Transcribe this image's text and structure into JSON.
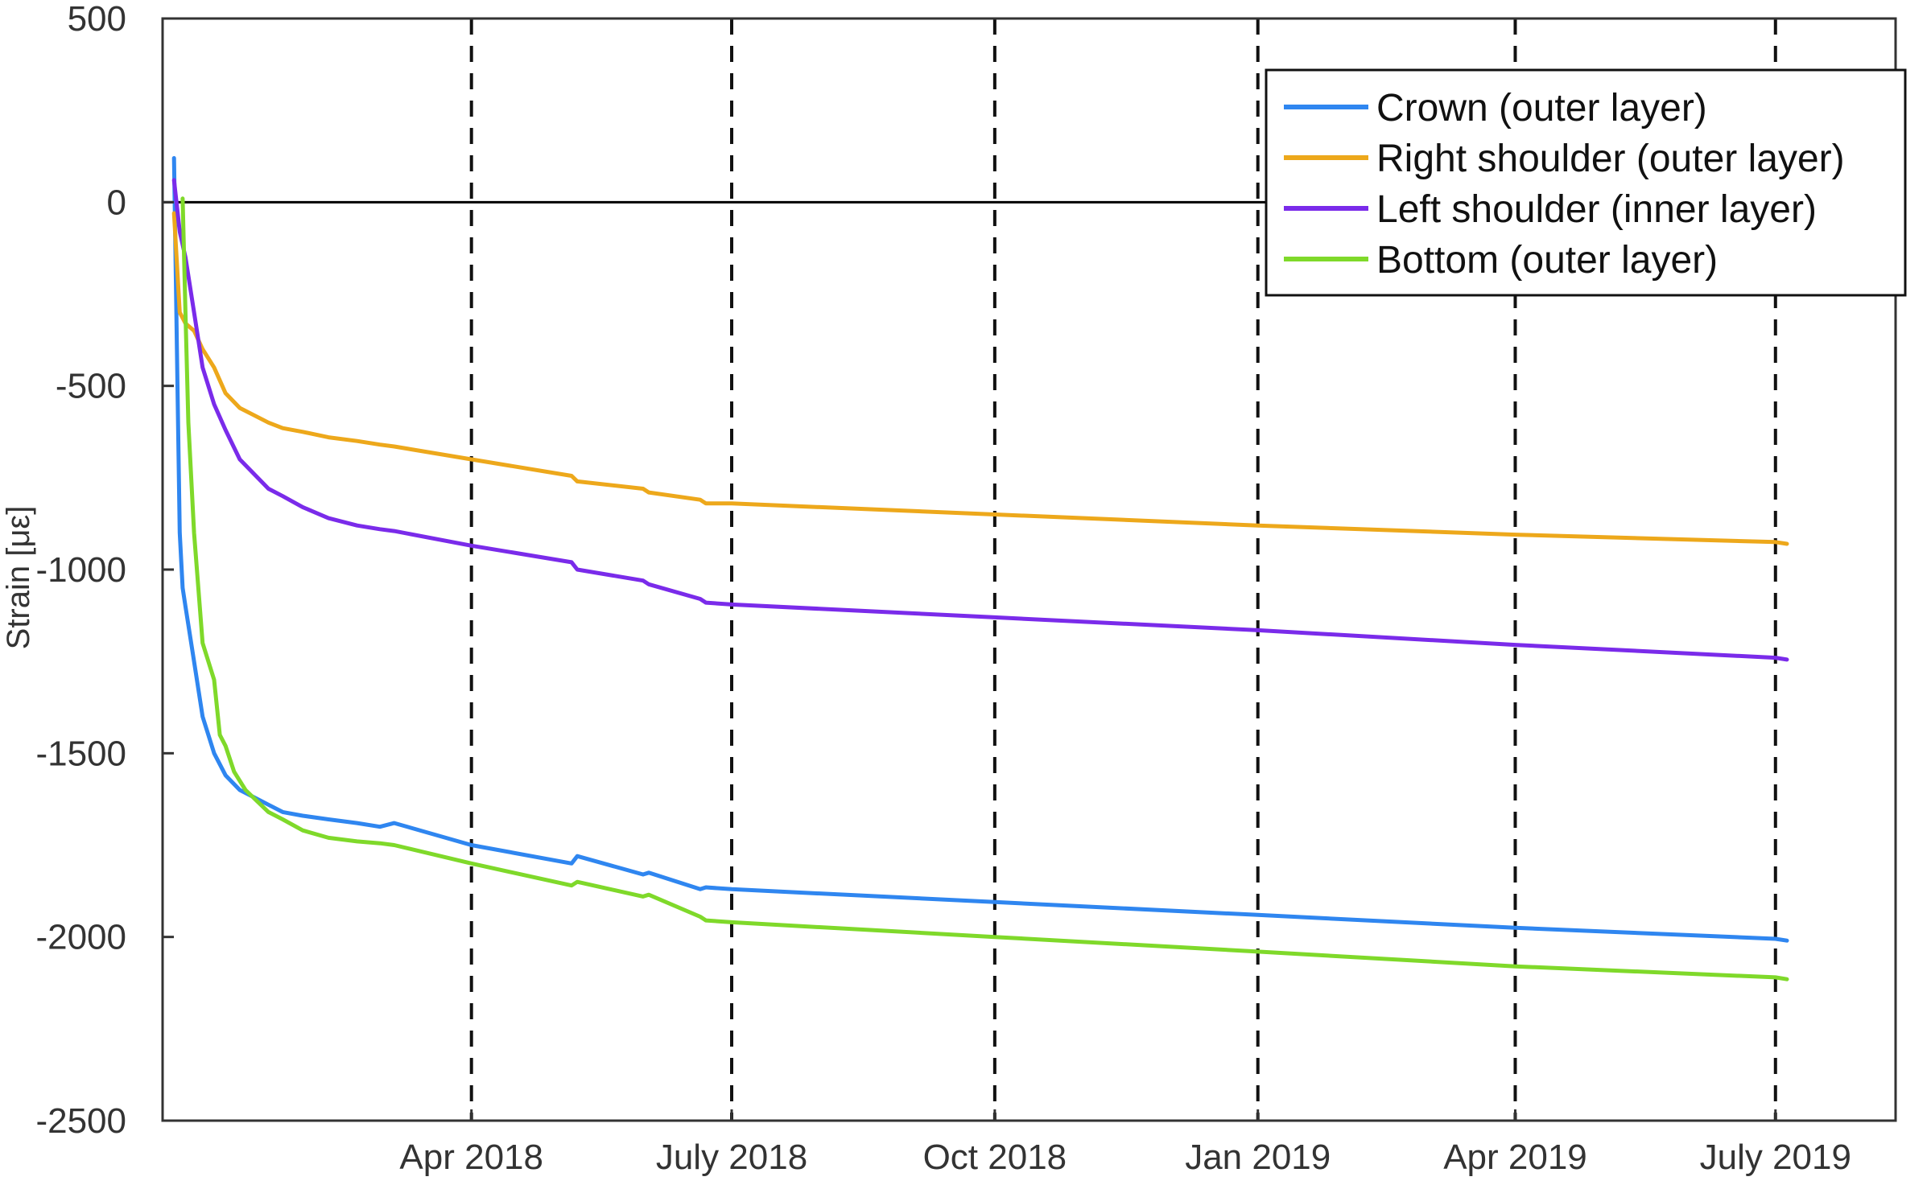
{
  "chart_data": {
    "type": "line",
    "title": "",
    "xlabel": "",
    "ylabel": "Strain [με]",
    "ylim": [
      -2500,
      500
    ],
    "yticks": [
      500,
      0,
      -500,
      -1000,
      -1500,
      -2000,
      -2500
    ],
    "ytick_labels": [
      "500",
      "0",
      "-500",
      "-1000",
      "-1500",
      "-2000",
      "-2500"
    ],
    "xlim": [
      "2017-12-14",
      "2019-08-12"
    ],
    "xticks": [
      "2018-04-01",
      "2018-07-01",
      "2018-10-01",
      "2019-01-01",
      "2019-04-01",
      "2019-07-01"
    ],
    "xtick_labels": [
      "Apr 2018",
      "July 2018",
      "Oct 2018",
      "Jan 2019",
      "Apr 2019",
      "July 2019"
    ],
    "vertical_dashed_gridlines": true,
    "zero_line": true,
    "legend_position": "top-right",
    "series": [
      {
        "name": "Crown (outer layer)",
        "color": "#2f86f0",
        "x": [
          "2017-12-18",
          "2017-12-19",
          "2017-12-20",
          "2017-12-21",
          "2017-12-22",
          "2017-12-25",
          "2017-12-28",
          "2018-01-01",
          "2018-01-05",
          "2018-01-10",
          "2018-01-15",
          "2018-01-20",
          "2018-01-25",
          "2018-02-01",
          "2018-02-10",
          "2018-02-20",
          "2018-02-28",
          "2018-03-05",
          "2018-04-01",
          "2018-05-06",
          "2018-05-08",
          "2018-05-31",
          "2018-06-02",
          "2018-06-20",
          "2018-06-22",
          "2018-07-01",
          "2018-10-01",
          "2019-01-01",
          "2019-04-01",
          "2019-07-01",
          "2019-07-05"
        ],
        "values": [
          120,
          -400,
          -900,
          -1050,
          -1100,
          -1250,
          -1400,
          -1500,
          -1560,
          -1600,
          -1620,
          -1640,
          -1660,
          -1670,
          -1680,
          -1690,
          -1700,
          -1690,
          -1750,
          -1800,
          -1780,
          -1830,
          -1825,
          -1870,
          -1865,
          -1870,
          -1905,
          -1940,
          -1975,
          -2005,
          -2010
        ]
      },
      {
        "name": "Right shoulder (outer layer)",
        "color": "#eda81b",
        "x": [
          "2017-12-18",
          "2017-12-20",
          "2017-12-22",
          "2017-12-25",
          "2017-12-28",
          "2018-01-01",
          "2018-01-05",
          "2018-01-10",
          "2018-01-15",
          "2018-01-20",
          "2018-01-25",
          "2018-02-01",
          "2018-02-10",
          "2018-02-20",
          "2018-02-28",
          "2018-03-05",
          "2018-04-01",
          "2018-05-06",
          "2018-05-08",
          "2018-05-31",
          "2018-06-02",
          "2018-06-20",
          "2018-06-22",
          "2018-07-01",
          "2018-10-01",
          "2019-01-01",
          "2019-04-01",
          "2019-07-01",
          "2019-07-05"
        ],
        "values": [
          -30,
          -300,
          -330,
          -350,
          -400,
          -450,
          -520,
          -560,
          -580,
          -600,
          -615,
          -625,
          -640,
          -650,
          -660,
          -665,
          -700,
          -745,
          -760,
          -780,
          -790,
          -810,
          -820,
          -820,
          -850,
          -880,
          -905,
          -925,
          -930
        ]
      },
      {
        "name": "Left shoulder (inner layer)",
        "color": "#7a2bea",
        "x": [
          "2017-12-18",
          "2017-12-20",
          "2017-12-22",
          "2017-12-25",
          "2017-12-28",
          "2018-01-01",
          "2018-01-05",
          "2018-01-10",
          "2018-01-15",
          "2018-01-20",
          "2018-01-25",
          "2018-02-01",
          "2018-02-10",
          "2018-02-20",
          "2018-02-28",
          "2018-03-05",
          "2018-04-01",
          "2018-05-06",
          "2018-05-08",
          "2018-05-31",
          "2018-06-02",
          "2018-06-20",
          "2018-06-22",
          "2018-07-01",
          "2018-10-01",
          "2019-01-01",
          "2019-04-01",
          "2019-07-01",
          "2019-07-05"
        ],
        "values": [
          60,
          -80,
          -150,
          -300,
          -450,
          -550,
          -620,
          -700,
          -740,
          -780,
          -800,
          -830,
          -860,
          -880,
          -890,
          -895,
          -935,
          -980,
          -1000,
          -1030,
          -1040,
          -1080,
          -1090,
          -1095,
          -1130,
          -1165,
          -1205,
          -1240,
          -1245
        ]
      },
      {
        "name": "Bottom (outer layer)",
        "color": "#7fd92a",
        "x": [
          "2017-12-21",
          "2017-12-22",
          "2017-12-23",
          "2017-12-25",
          "2017-12-28",
          "2018-01-01",
          "2018-01-03",
          "2018-01-05",
          "2018-01-08",
          "2018-01-12",
          "2018-01-16",
          "2018-01-20",
          "2018-01-25",
          "2018-02-01",
          "2018-02-10",
          "2018-02-20",
          "2018-02-28",
          "2018-03-05",
          "2018-04-01",
          "2018-05-06",
          "2018-05-08",
          "2018-05-31",
          "2018-06-02",
          "2018-06-20",
          "2018-06-22",
          "2018-07-01",
          "2018-10-01",
          "2019-01-01",
          "2019-04-01",
          "2019-07-01",
          "2019-07-05"
        ],
        "values": [
          10,
          -300,
          -600,
          -900,
          -1200,
          -1300,
          -1450,
          -1480,
          -1550,
          -1600,
          -1630,
          -1660,
          -1680,
          -1710,
          -1730,
          -1740,
          -1745,
          -1750,
          -1800,
          -1860,
          -1850,
          -1890,
          -1885,
          -1945,
          -1955,
          -1960,
          -2000,
          -2040,
          -2080,
          -2110,
          -2115
        ]
      }
    ]
  }
}
